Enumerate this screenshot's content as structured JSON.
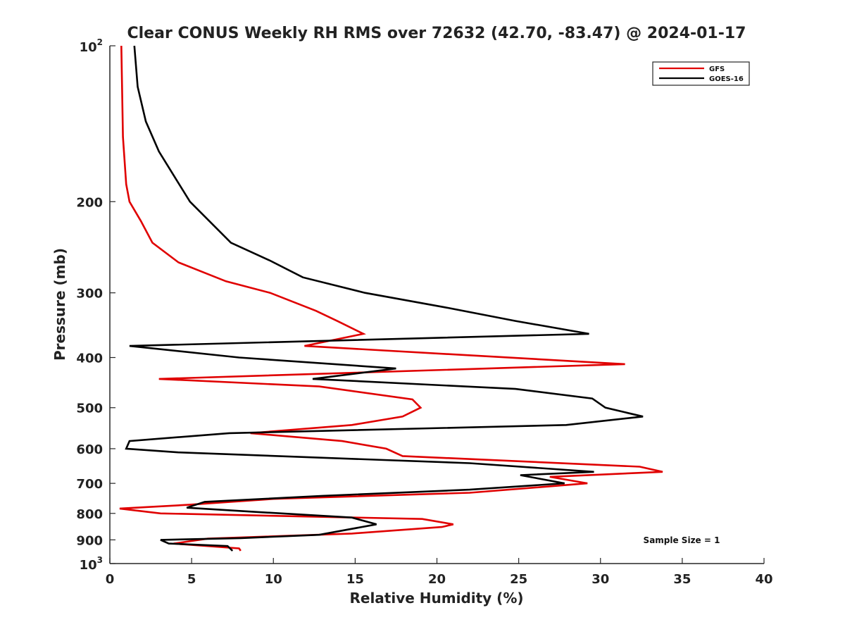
{
  "chart_data": {
    "type": "line",
    "title": "Clear CONUS Weekly RH RMS over 72632 (42.70, -83.47) @ 2024-01-17",
    "xlabel": "Relative Humidity (%)",
    "ylabel": "Pressure (mb)",
    "xlim": [
      0,
      40
    ],
    "ylim": [
      100,
      1000
    ],
    "yscale": "log",
    "y_reversed": true,
    "xticks": [
      0,
      5,
      10,
      15,
      20,
      25,
      30,
      35,
      40
    ],
    "xtick_labels": [
      "0",
      "5",
      "10",
      "15",
      "20",
      "25",
      "30",
      "35",
      "40"
    ],
    "yticks": [
      200,
      300,
      400,
      500,
      600,
      700,
      800,
      900
    ],
    "ytick_labels": [
      "200",
      "300",
      "400",
      "500",
      "600",
      "700",
      "800",
      "900"
    ],
    "y_end_labels": {
      "top": {
        "base": "10",
        "exp": "2"
      },
      "bottom": {
        "base": "10",
        "exp": "3"
      }
    },
    "grid": false,
    "legend_position": "top-right",
    "annotation": "Sample Size = 1",
    "series": [
      {
        "name": "GFS",
        "color": "#e00000",
        "points": [
          [
            0.7,
            100
          ],
          [
            0.8,
            150
          ],
          [
            1.0,
            185
          ],
          [
            1.2,
            200
          ],
          [
            1.9,
            218
          ],
          [
            2.6,
            240
          ],
          [
            4.2,
            262
          ],
          [
            7.1,
            285
          ],
          [
            9.8,
            300
          ],
          [
            12.6,
            325
          ],
          [
            13.9,
            340
          ],
          [
            15.5,
            360
          ],
          [
            11.9,
            380
          ],
          [
            31.5,
            412
          ],
          [
            3.0,
            440
          ],
          [
            12.8,
            455
          ],
          [
            18.5,
            482
          ],
          [
            19.0,
            500
          ],
          [
            17.9,
            520
          ],
          [
            14.8,
            540
          ],
          [
            8.6,
            560
          ],
          [
            14.2,
            580
          ],
          [
            16.9,
            600
          ],
          [
            17.9,
            620
          ],
          [
            32.4,
            650
          ],
          [
            33.8,
            665
          ],
          [
            26.9,
            680
          ],
          [
            29.2,
            700
          ],
          [
            22.0,
            730
          ],
          [
            10.0,
            750
          ],
          [
            4.8,
            770
          ],
          [
            0.6,
            783
          ],
          [
            3.1,
            800
          ],
          [
            19.1,
            820
          ],
          [
            21.0,
            840
          ],
          [
            20.3,
            850
          ],
          [
            14.8,
            875
          ],
          [
            6.0,
            895
          ],
          [
            3.9,
            915
          ],
          [
            7.9,
            935
          ],
          [
            8.0,
            945
          ]
        ]
      },
      {
        "name": "GOES-16",
        "color": "#000000",
        "points": [
          [
            1.5,
            100
          ],
          [
            1.7,
            120
          ],
          [
            2.2,
            140
          ],
          [
            3.0,
            160
          ],
          [
            4.0,
            180
          ],
          [
            4.9,
            200
          ],
          [
            7.4,
            240
          ],
          [
            9.8,
            260
          ],
          [
            11.8,
            280
          ],
          [
            15.6,
            300
          ],
          [
            20.5,
            320
          ],
          [
            24.8,
            340
          ],
          [
            29.3,
            360
          ],
          [
            1.2,
            380
          ],
          [
            7.9,
            400
          ],
          [
            17.5,
            420
          ],
          [
            12.4,
            440
          ],
          [
            24.8,
            460
          ],
          [
            29.5,
            480
          ],
          [
            30.3,
            500
          ],
          [
            32.6,
            520
          ],
          [
            27.9,
            540
          ],
          [
            7.3,
            560
          ],
          [
            1.2,
            580
          ],
          [
            1.0,
            600
          ],
          [
            4.2,
            610
          ],
          [
            22.0,
            640
          ],
          [
            29.6,
            665
          ],
          [
            25.1,
            675
          ],
          [
            27.8,
            700
          ],
          [
            22.0,
            720
          ],
          [
            13.0,
            740
          ],
          [
            5.8,
            760
          ],
          [
            4.7,
            780
          ],
          [
            9.0,
            795
          ],
          [
            14.8,
            815
          ],
          [
            16.3,
            840
          ],
          [
            12.8,
            880
          ],
          [
            8.0,
            893
          ],
          [
            3.1,
            900
          ],
          [
            3.6,
            915
          ],
          [
            7.2,
            925
          ],
          [
            7.5,
            945
          ]
        ]
      }
    ]
  }
}
